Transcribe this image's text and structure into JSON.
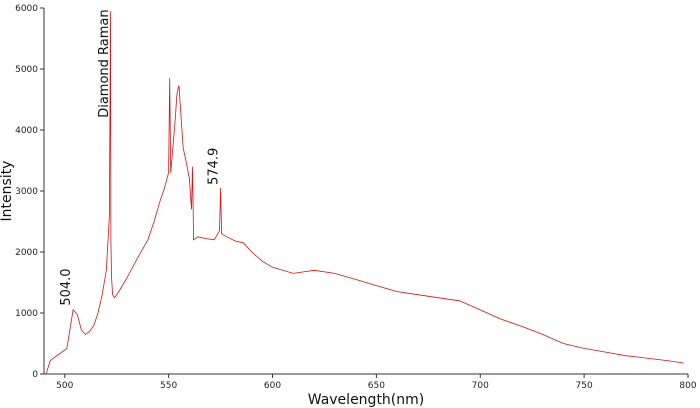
{
  "chart_data": {
    "type": "line",
    "xlabel": "Wavelength(nm)",
    "ylabel": "Intensity",
    "xlim": [
      490,
      800
    ],
    "ylim": [
      0,
      6000
    ],
    "x_ticks": [
      500,
      550,
      600,
      650,
      700,
      750,
      800
    ],
    "y_ticks": [
      0,
      1000,
      2000,
      3000,
      4000,
      5000,
      6000
    ],
    "grid": false,
    "legend": "none",
    "series": [
      {
        "color": "#e01010",
        "x": [
          491,
          493,
          497,
          501,
          504,
          506,
          508,
          510,
          512,
          514,
          516,
          518,
          520,
          521,
          521.5,
          522,
          522.2,
          522.5,
          523,
          524,
          526,
          530,
          535,
          540,
          543,
          546,
          548,
          550,
          550.5,
          551,
          552,
          553,
          554,
          555,
          556,
          557,
          558,
          560,
          561,
          561.5,
          562,
          564,
          568,
          572,
          574.5,
          575,
          575.5,
          578,
          582,
          586,
          590,
          595,
          600,
          610,
          620,
          630,
          640,
          650,
          660,
          670,
          680,
          690,
          700,
          710,
          720,
          730,
          740,
          750,
          760,
          770,
          780,
          790,
          798
        ],
        "y": [
          0,
          220,
          320,
          420,
          1050,
          980,
          720,
          650,
          700,
          800,
          1000,
          1300,
          1700,
          2300,
          2600,
          5950,
          2200,
          1600,
          1300,
          1250,
          1350,
          1580,
          1900,
          2200,
          2500,
          2850,
          3050,
          3300,
          4850,
          3300,
          3700,
          4100,
          4600,
          4730,
          4200,
          3700,
          3550,
          3200,
          2700,
          3400,
          2200,
          2250,
          2220,
          2200,
          2350,
          3050,
          2300,
          2250,
          2180,
          2150,
          2000,
          1850,
          1750,
          1650,
          1700,
          1650,
          1550,
          1450,
          1350,
          1300,
          1250,
          1200,
          1050,
          900,
          780,
          650,
          500,
          420,
          360,
          300,
          260,
          220,
          180
        ]
      }
    ],
    "annotations": [
      {
        "text": "504.0",
        "x": 504.0,
        "y": 1120
      },
      {
        "text": "Diamond Raman",
        "x": 522.2,
        "y": 4200
      },
      {
        "text": "574.9",
        "x": 574.9,
        "y": 3100
      }
    ]
  }
}
